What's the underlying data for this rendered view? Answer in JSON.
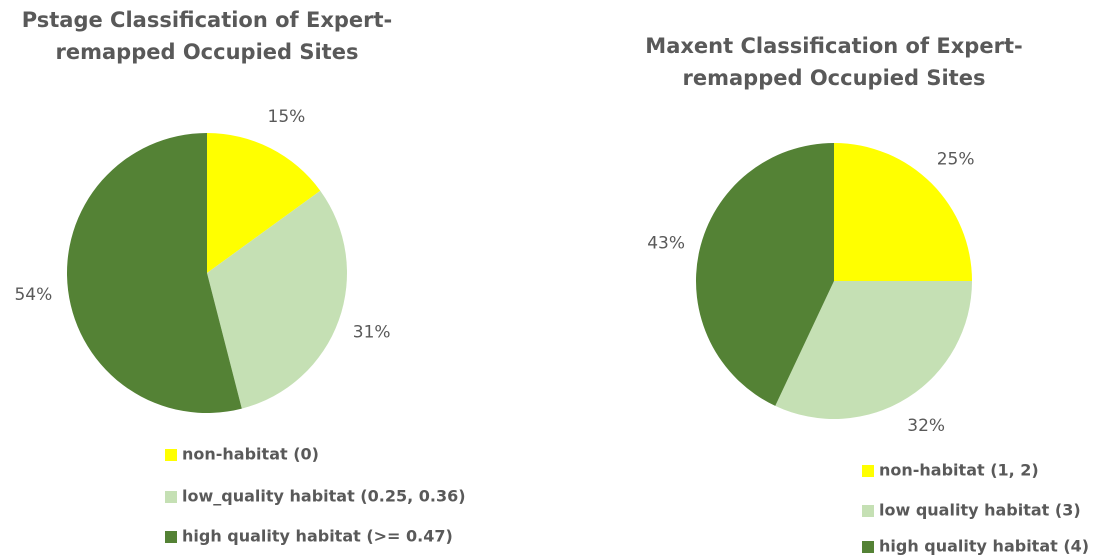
{
  "chart_data": [
    {
      "type": "pie",
      "title": "Pstage Classification of Expert-remapped Occupied Sites",
      "categories": [
        "non-habitat (0)",
        "low_quality habitat (0.25, 0.36)",
        "high quality habitat (>= 0.47)"
      ],
      "values": [
        15,
        31,
        54
      ],
      "value_labels": [
        "15%",
        "31%",
        "54%"
      ],
      "colors": [
        "#ffff00",
        "#c5e0b4",
        "#548235"
      ]
    },
    {
      "type": "pie",
      "title": "Maxent Classification of Expert-remapped Occupied Sites",
      "categories": [
        "non-habitat (1, 2)",
        "low quality habitat (3)",
        "high quality habitat (4)"
      ],
      "values": [
        25,
        32,
        43
      ],
      "value_labels": [
        "25%",
        "32%",
        "43%"
      ],
      "colors": [
        "#ffff00",
        "#c5e0b4",
        "#548235"
      ]
    }
  ]
}
